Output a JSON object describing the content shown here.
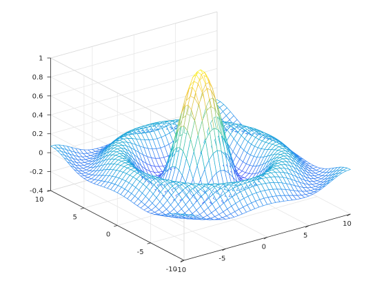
{
  "chart_data": {
    "type": "surface-mesh",
    "function": "sinc(r) = sin(r)/r, r = sqrt(x^2 + y^2)",
    "x_range": [
      -10,
      10
    ],
    "y_range": [
      -10,
      10
    ],
    "zlim": [
      -0.4,
      1
    ],
    "grid_points": 41,
    "colormap": "parula",
    "grid": true,
    "box": true,
    "x_ticks": [
      "-10",
      "-5",
      "0",
      "5",
      "10"
    ],
    "y_ticks": [
      "-10",
      "-5",
      "0",
      "5",
      "10"
    ],
    "z_ticks": [
      "-0.4",
      "-0.2",
      "0",
      "0.2",
      "0.4",
      "0.6",
      "0.8",
      "1"
    ],
    "x_tick_values": [
      -10,
      -5,
      0,
      5,
      10
    ],
    "y_tick_values": [
      -10,
      -5,
      0,
      5,
      10
    ],
    "z_tick_values": [
      -0.4,
      -0.2,
      0,
      0.2,
      0.4,
      0.6,
      0.8,
      1
    ],
    "colors": {
      "axis": "#262626",
      "grid": "#e6e6e6",
      "background": "#ffffff"
    }
  }
}
